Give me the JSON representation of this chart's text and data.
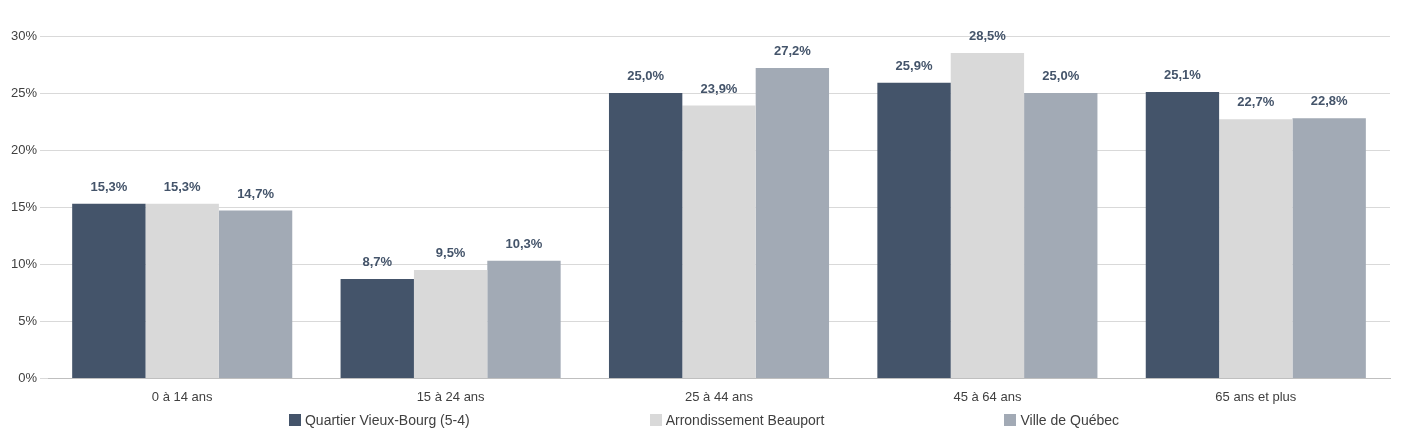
{
  "chart_data": {
    "type": "bar",
    "categories": [
      "0 à 14 ans",
      "15 à 24 ans",
      "25 à 44 ans",
      "45 à 64 ans",
      "65 ans et plus"
    ],
    "series": [
      {
        "name": "Quartier Vieux-Bourg (5-4)",
        "color": "#44546a",
        "values": [
          15.3,
          8.7,
          25.0,
          25.9,
          25.1
        ],
        "value_labels": [
          "15,3%",
          "8,7%",
          "25,0%",
          "25,9%",
          "25,1%"
        ]
      },
      {
        "name": "Arrondissement Beauport",
        "color": "#d9d9d9",
        "values": [
          15.3,
          9.5,
          23.9,
          28.5,
          22.7
        ],
        "value_labels": [
          "15,3%",
          "9,5%",
          "23,9%",
          "28,5%",
          "22,7%"
        ]
      },
      {
        "name": "Ville de Québec",
        "color": "#a2aab5",
        "values": [
          14.7,
          10.3,
          27.2,
          25.0,
          22.8
        ],
        "value_labels": [
          "14,7%",
          "10,3%",
          "27,2%",
          "25,0%",
          "22,8%"
        ]
      }
    ],
    "ylim": [
      0,
      30
    ],
    "yticks": [
      {
        "value": 0,
        "label": "0%"
      },
      {
        "value": 5,
        "label": "5%"
      },
      {
        "value": 10,
        "label": "10%"
      },
      {
        "value": 15,
        "label": "15%"
      },
      {
        "value": 20,
        "label": "20%"
      },
      {
        "value": 25,
        "label": "25%"
      },
      {
        "value": 30,
        "label": "30%"
      }
    ],
    "grid": "y",
    "legend": "bottom"
  }
}
